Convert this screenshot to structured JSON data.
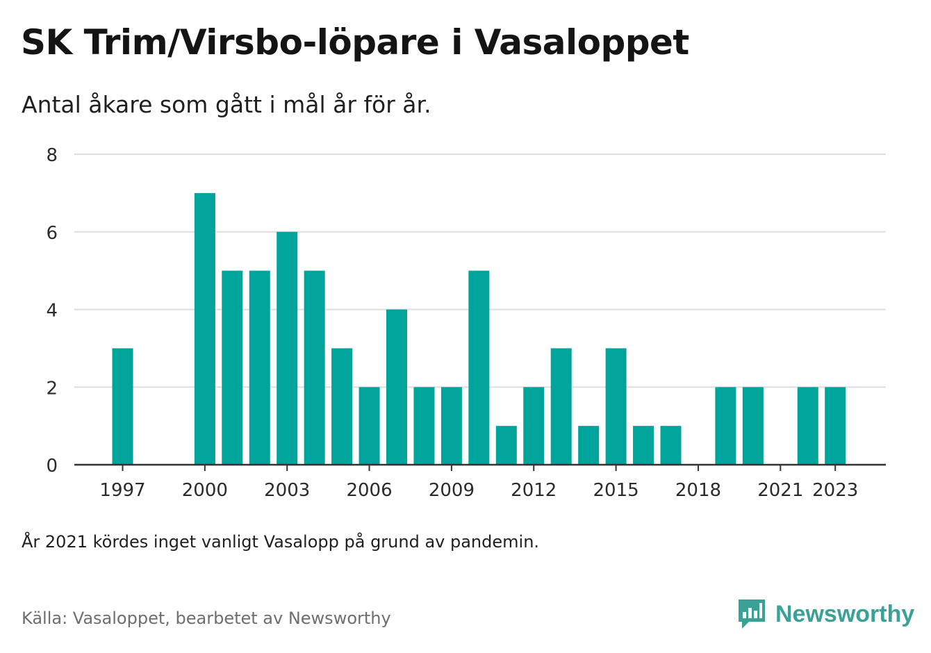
{
  "title": "SK Trim/Virsbo-löpare i Vasaloppet",
  "subtitle": "Antal åkare som gått i mål år för år.",
  "note": "År 2021 kördes inget vanligt Vasalopp på grund av pandemin.",
  "source": "Källa: Vasaloppet, bearbetet av Newsworthy",
  "brand": {
    "name": "Newsworthy",
    "icon": "newsworthy-logo-icon",
    "color": "#3aa196"
  },
  "colors": {
    "bar": "#00a49a",
    "grid": "#dedede",
    "axis": "#333333",
    "tick_label": "#2b2b2b"
  },
  "chart_data": {
    "type": "bar",
    "categories": [
      "1997",
      "1998",
      "1999",
      "2000",
      "2001",
      "2002",
      "2003",
      "2004",
      "2005",
      "2006",
      "2007",
      "2008",
      "2009",
      "2010",
      "2011",
      "2012",
      "2013",
      "2014",
      "2015",
      "2016",
      "2017",
      "2018",
      "2019",
      "2020",
      "2021",
      "2022",
      "2023"
    ],
    "values": [
      3,
      0,
      0,
      7,
      5,
      5,
      6,
      5,
      3,
      2,
      4,
      2,
      2,
      5,
      1,
      2,
      3,
      1,
      3,
      1,
      1,
      0,
      2,
      2,
      0,
      2,
      2
    ],
    "x_tick_labels": [
      "1997",
      "2000",
      "2003",
      "2006",
      "2009",
      "2012",
      "2015",
      "2018",
      "2021",
      "2023"
    ],
    "y_ticks": [
      0,
      2,
      4,
      6,
      8
    ],
    "ylim": [
      0,
      8
    ],
    "xlabel": "",
    "ylabel": "",
    "grid": true
  }
}
